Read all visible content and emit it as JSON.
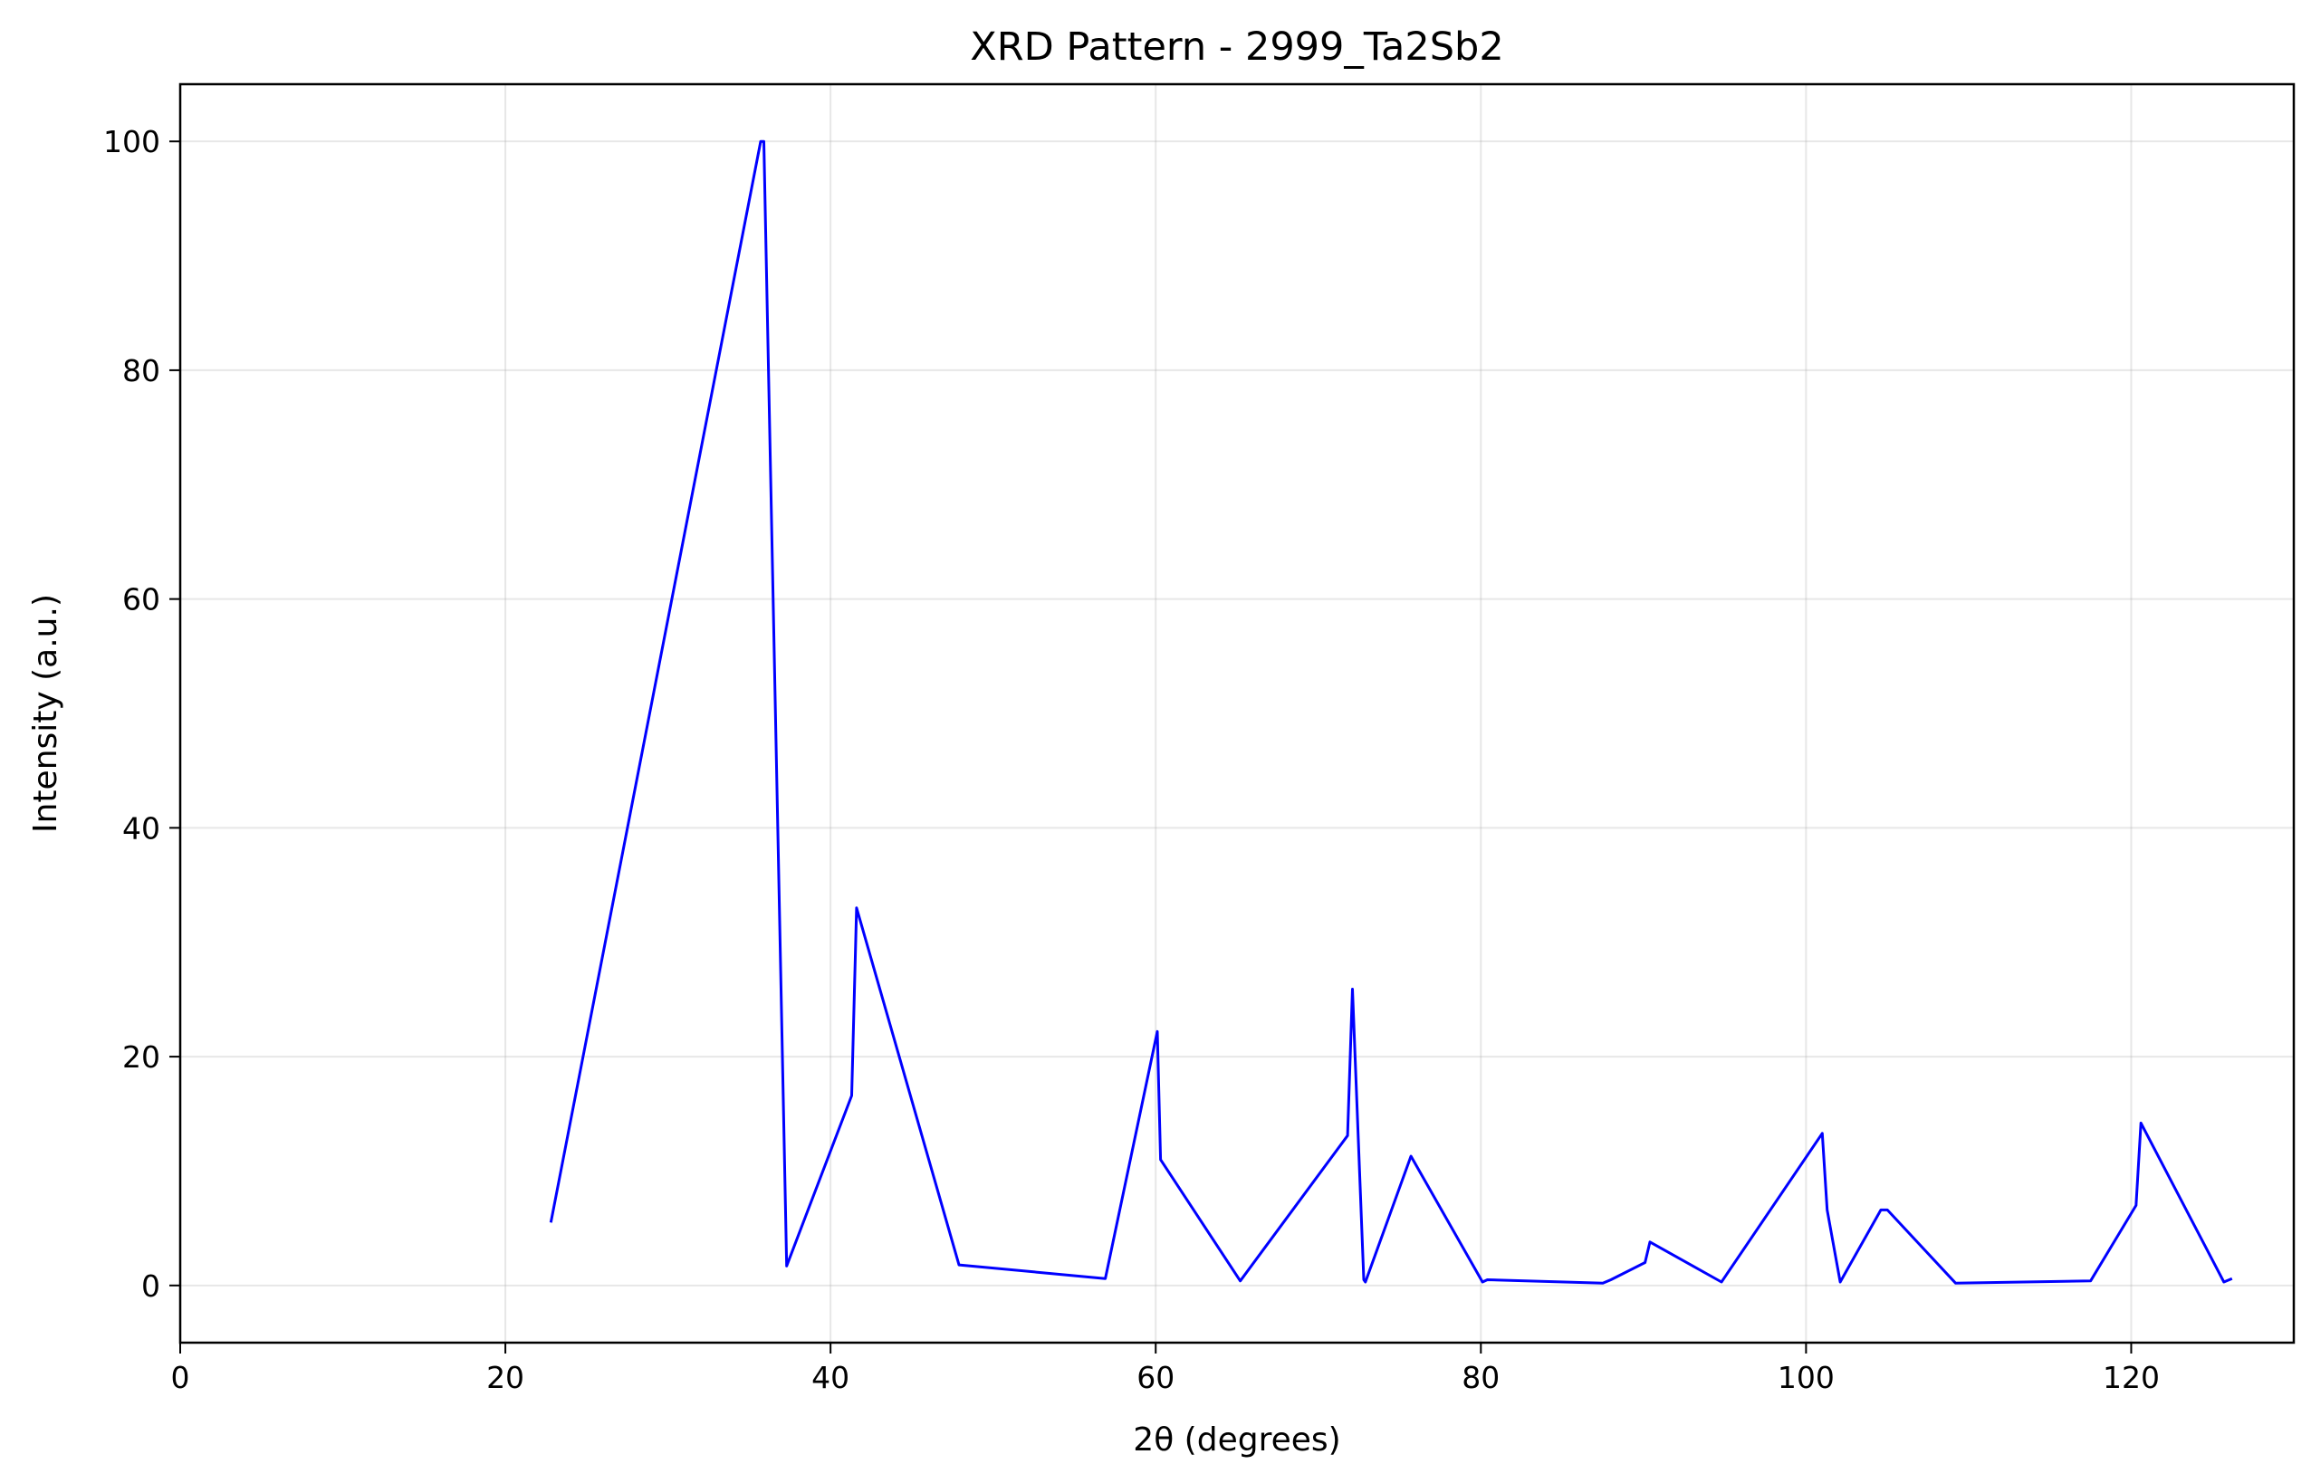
{
  "chart_data": {
    "type": "line",
    "title": "XRD Pattern - 2999_Ta2Sb2",
    "xlabel": "2θ (degrees)",
    "ylabel": "Intensity (a.u.)",
    "xlim": [
      0,
      130
    ],
    "ylim": [
      -5,
      105
    ],
    "xticks": [
      0,
      20,
      40,
      60,
      80,
      100,
      120
    ],
    "yticks": [
      0,
      20,
      40,
      60,
      80,
      100
    ],
    "grid": true,
    "legend": "none",
    "line_color": "#0000ff",
    "series": [
      {
        "x": [
          22.8,
          35.7,
          35.9,
          37.3,
          41.3,
          41.6,
          47.9,
          56.9,
          60.1,
          60.3,
          65.2,
          71.8,
          72.1,
          72.8,
          72.9,
          75.7,
          80.1,
          80.4,
          87.5,
          88.0,
          90.1,
          90.4,
          94.8,
          101.0,
          101.3,
          102.1,
          104.6,
          105.0,
          109.2,
          117.5,
          120.3,
          120.6,
          125.7,
          126.2
        ],
        "y": [
          5.5,
          100.0,
          100.0,
          1.7,
          16.6,
          33.0,
          1.8,
          0.6,
          22.2,
          11.0,
          0.4,
          13.1,
          25.9,
          0.5,
          0.3,
          11.3,
          0.3,
          0.5,
          0.2,
          0.5,
          2.0,
          3.8,
          0.3,
          13.3,
          6.6,
          0.3,
          6.6,
          6.6,
          0.2,
          0.4,
          7.0,
          14.2,
          0.3,
          0.6
        ]
      }
    ]
  }
}
